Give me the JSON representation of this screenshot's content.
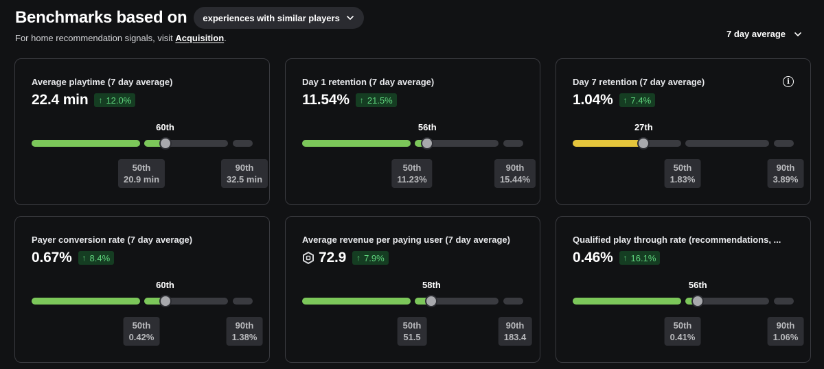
{
  "header": {
    "title": "Benchmarks based on",
    "comparison_selector": "experiences with similar players",
    "subtitle_prefix": "For home recommendation signals, visit ",
    "subtitle_link": "Acquisition",
    "subtitle_suffix": "."
  },
  "period_selector": "7 day average",
  "colors": {
    "green_fill": "#7cc75a",
    "yellow_fill": "#e5c53c",
    "delta_bg": "#153d22",
    "delta_text": "#5fd47d",
    "track": "#3a3b40"
  },
  "cards": [
    {
      "title": "Average playtime (7 day average)",
      "value": "22.4 min",
      "delta": "12.0%",
      "percentile": "60th",
      "percentile_value": 0.6,
      "fill_color": "green",
      "p50_label": "50th",
      "p50_value": "20.9 min",
      "p90_label": "90th",
      "p90_value": "32.5 min"
    },
    {
      "title": "Day 1 retention (7 day average)",
      "value": "11.54%",
      "delta": "21.5%",
      "percentile": "56th",
      "percentile_value": 0.56,
      "fill_color": "green",
      "p50_label": "50th",
      "p50_value": "11.23%",
      "p90_label": "90th",
      "p90_value": "15.44%"
    },
    {
      "title": "Day 7 retention (7 day average)",
      "value": "1.04%",
      "delta": "7.4%",
      "percentile": "27th",
      "percentile_value": 0.27,
      "fill_color": "yellow",
      "info_icon": "info-icon",
      "p50_label": "50th",
      "p50_value": "1.83%",
      "p90_label": "90th",
      "p90_value": "3.89%"
    },
    {
      "title": "Payer conversion rate (7 day average)",
      "value": "0.67%",
      "delta": "8.4%",
      "percentile": "60th",
      "percentile_value": 0.6,
      "fill_color": "green",
      "p50_label": "50th",
      "p50_value": "0.42%",
      "p90_label": "90th",
      "p90_value": "1.38%"
    },
    {
      "title": "Average revenue per paying user (7 day average)",
      "value": "72.9",
      "value_icon": "robux-icon",
      "delta": "7.9%",
      "percentile": "58th",
      "percentile_value": 0.58,
      "fill_color": "green",
      "p50_label": "50th",
      "p50_value": "51.5",
      "p90_label": "90th",
      "p90_value": "183.4"
    },
    {
      "title": "Qualified play through rate (recommendations, ...",
      "value": "0.46%",
      "delta": "16.1%",
      "percentile": "56th",
      "percentile_value": 0.56,
      "fill_color": "green",
      "p50_label": "50th",
      "p50_value": "0.41%",
      "p90_label": "90th",
      "p90_value": "1.06%"
    }
  ]
}
